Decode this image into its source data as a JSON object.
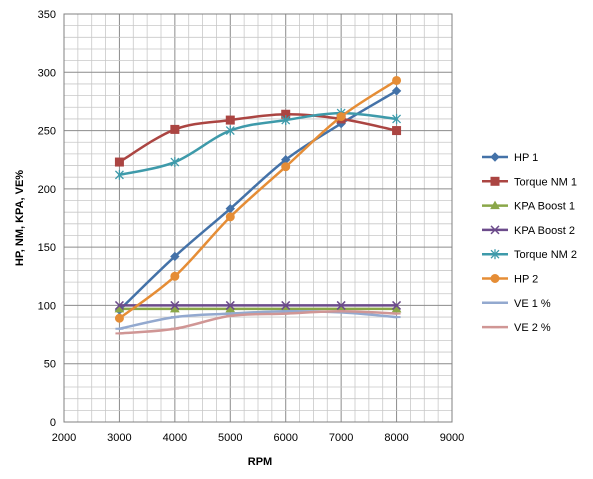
{
  "chart_data": {
    "type": "scatter",
    "xlabel": "RPM",
    "ylabel": "HP, NM, KPA, VE%",
    "xlim": [
      2000,
      9000
    ],
    "ylim": [
      0,
      350
    ],
    "x_ticks": [
      "2000",
      "3000",
      "4000",
      "5000",
      "6000",
      "7000",
      "8000",
      "9000"
    ],
    "y_ticks": [
      "0",
      "50",
      "100",
      "150",
      "200",
      "250",
      "300",
      "350"
    ],
    "grid": true,
    "legend_position": "right",
    "x": [
      3000,
      4000,
      5000,
      6000,
      7000,
      8000
    ],
    "series": [
      {
        "name": "HP 1",
        "color": "#4472a8",
        "marker": "diamond",
        "values": [
          96,
          142,
          183,
          225,
          256,
          284
        ]
      },
      {
        "name": "Torque NM 1",
        "color": "#ab4542",
        "marker": "square",
        "values": [
          223,
          251,
          259,
          264,
          260,
          250
        ]
      },
      {
        "name": "KPA Boost 1",
        "color": "#8aa748",
        "marker": "triangle",
        "values": [
          97,
          97,
          97,
          97,
          97,
          97
        ]
      },
      {
        "name": "KPA Boost 2",
        "color": "#6c4b8b",
        "marker": "x",
        "values": [
          100,
          100,
          100,
          100,
          100,
          100
        ]
      },
      {
        "name": "Torque NM 2",
        "color": "#3e9aaa",
        "marker": "star",
        "values": [
          212,
          223,
          250,
          259,
          265,
          260
        ]
      },
      {
        "name": "HP 2",
        "color": "#e58d36",
        "marker": "circle",
        "values": [
          89,
          125,
          176,
          219,
          262,
          293
        ]
      },
      {
        "name": "VE 1 %",
        "color": "#93a9cf",
        "marker": "dash",
        "values": [
          80,
          90,
          93,
          95,
          94,
          90
        ]
      },
      {
        "name": "VE 2 %",
        "color": "#d09695",
        "marker": "dash",
        "values": [
          76,
          80,
          91,
          93,
          95,
          93
        ]
      }
    ]
  }
}
